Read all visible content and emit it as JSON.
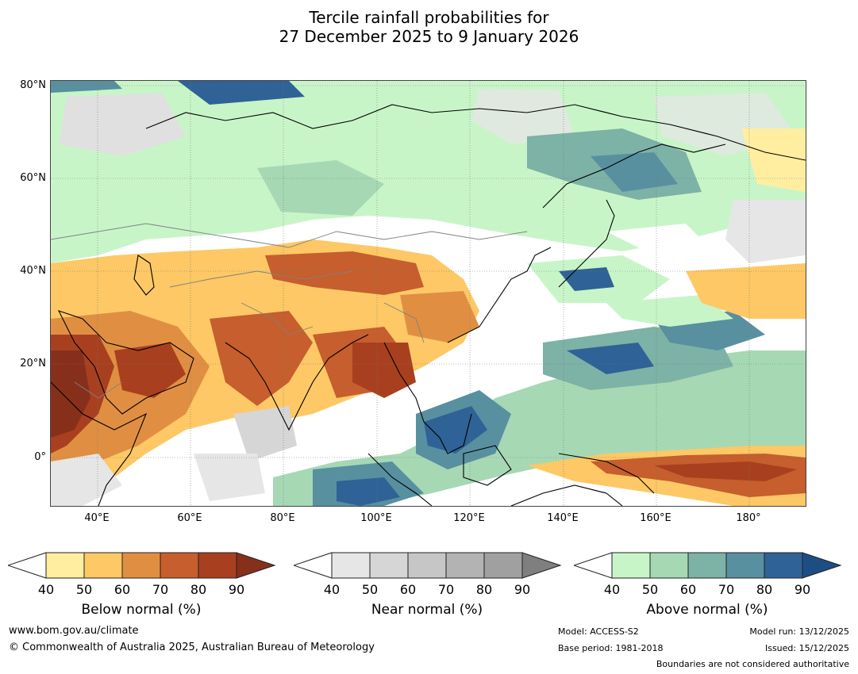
{
  "title_line1": "Tercile rainfall probabilities for",
  "title_line2": "27 December 2025 to 9 January 2026",
  "lat_labels": [
    "80°N",
    "60°N",
    "40°N",
    "20°N",
    "0°"
  ],
  "lon_labels": [
    "40°E",
    "60°E",
    "80°E",
    "100°E",
    "120°E",
    "140°E",
    "160°E",
    "180°"
  ],
  "colorbars": [
    {
      "label": "Below normal (%)",
      "ticks": [
        "40",
        "50",
        "60",
        "70",
        "80",
        "90"
      ],
      "colors": [
        "#ffeea0",
        "#fdc865",
        "#e08f42",
        "#c65e2d",
        "#a8401f",
        "#86301b"
      ]
    },
    {
      "label": "Near normal (%)",
      "ticks": [
        "40",
        "50",
        "60",
        "70",
        "80",
        "90"
      ],
      "colors": [
        "#e6e6e6",
        "#d6d6d6",
        "#c6c6c6",
        "#b3b3b3",
        "#a0a0a0",
        "#7f7f7f"
      ]
    },
    {
      "label": "Above normal (%)",
      "ticks": [
        "40",
        "50",
        "60",
        "70",
        "80",
        "90"
      ],
      "colors": [
        "#c8f5c8",
        "#a6d8b4",
        "#7db2a6",
        "#5890a0",
        "#2f6296",
        "#1c4e84"
      ]
    }
  ],
  "footer": {
    "website": "www.bom.gov.au/climate",
    "copyright": "© Commonwealth of Australia 2025, Australian Bureau of Meteorology",
    "model": "Model: ACCESS-S2",
    "base_period": "Base period: 1981-2018",
    "model_run": "Model run: 13/12/2025",
    "issued": "Issued: 15/12/2025",
    "boundaries": "Boundaries are not considered authoritative"
  }
}
